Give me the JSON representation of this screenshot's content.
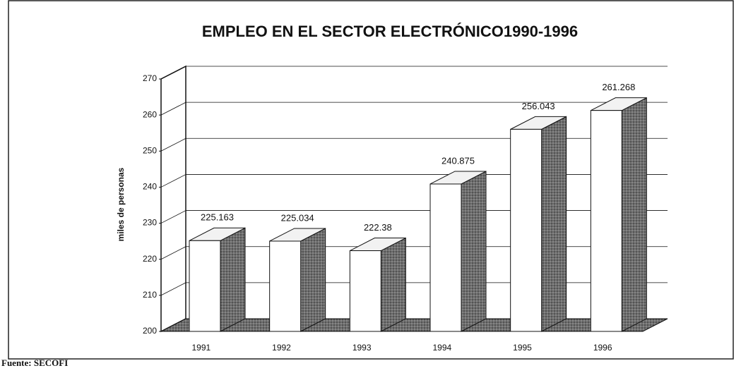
{
  "chart_data": {
    "type": "bar3d",
    "title": "EMPLEO EN EL SECTOR ELECTRÓNICO1990-1996",
    "ylabel": "miles de personas",
    "source": "Fuente: SECOFI",
    "categories": [
      "1991",
      "1992",
      "1993",
      "1994",
      "1995",
      "1996"
    ],
    "values": [
      225.163,
      225.034,
      222.38,
      240.875,
      256.043,
      261.268
    ],
    "color": "#ffffff",
    "side_color": "#6e6e6e",
    "ylim": [
      200,
      270
    ],
    "yticks": [
      200,
      210,
      220,
      230,
      240,
      250,
      260,
      270
    ],
    "grid": true
  }
}
